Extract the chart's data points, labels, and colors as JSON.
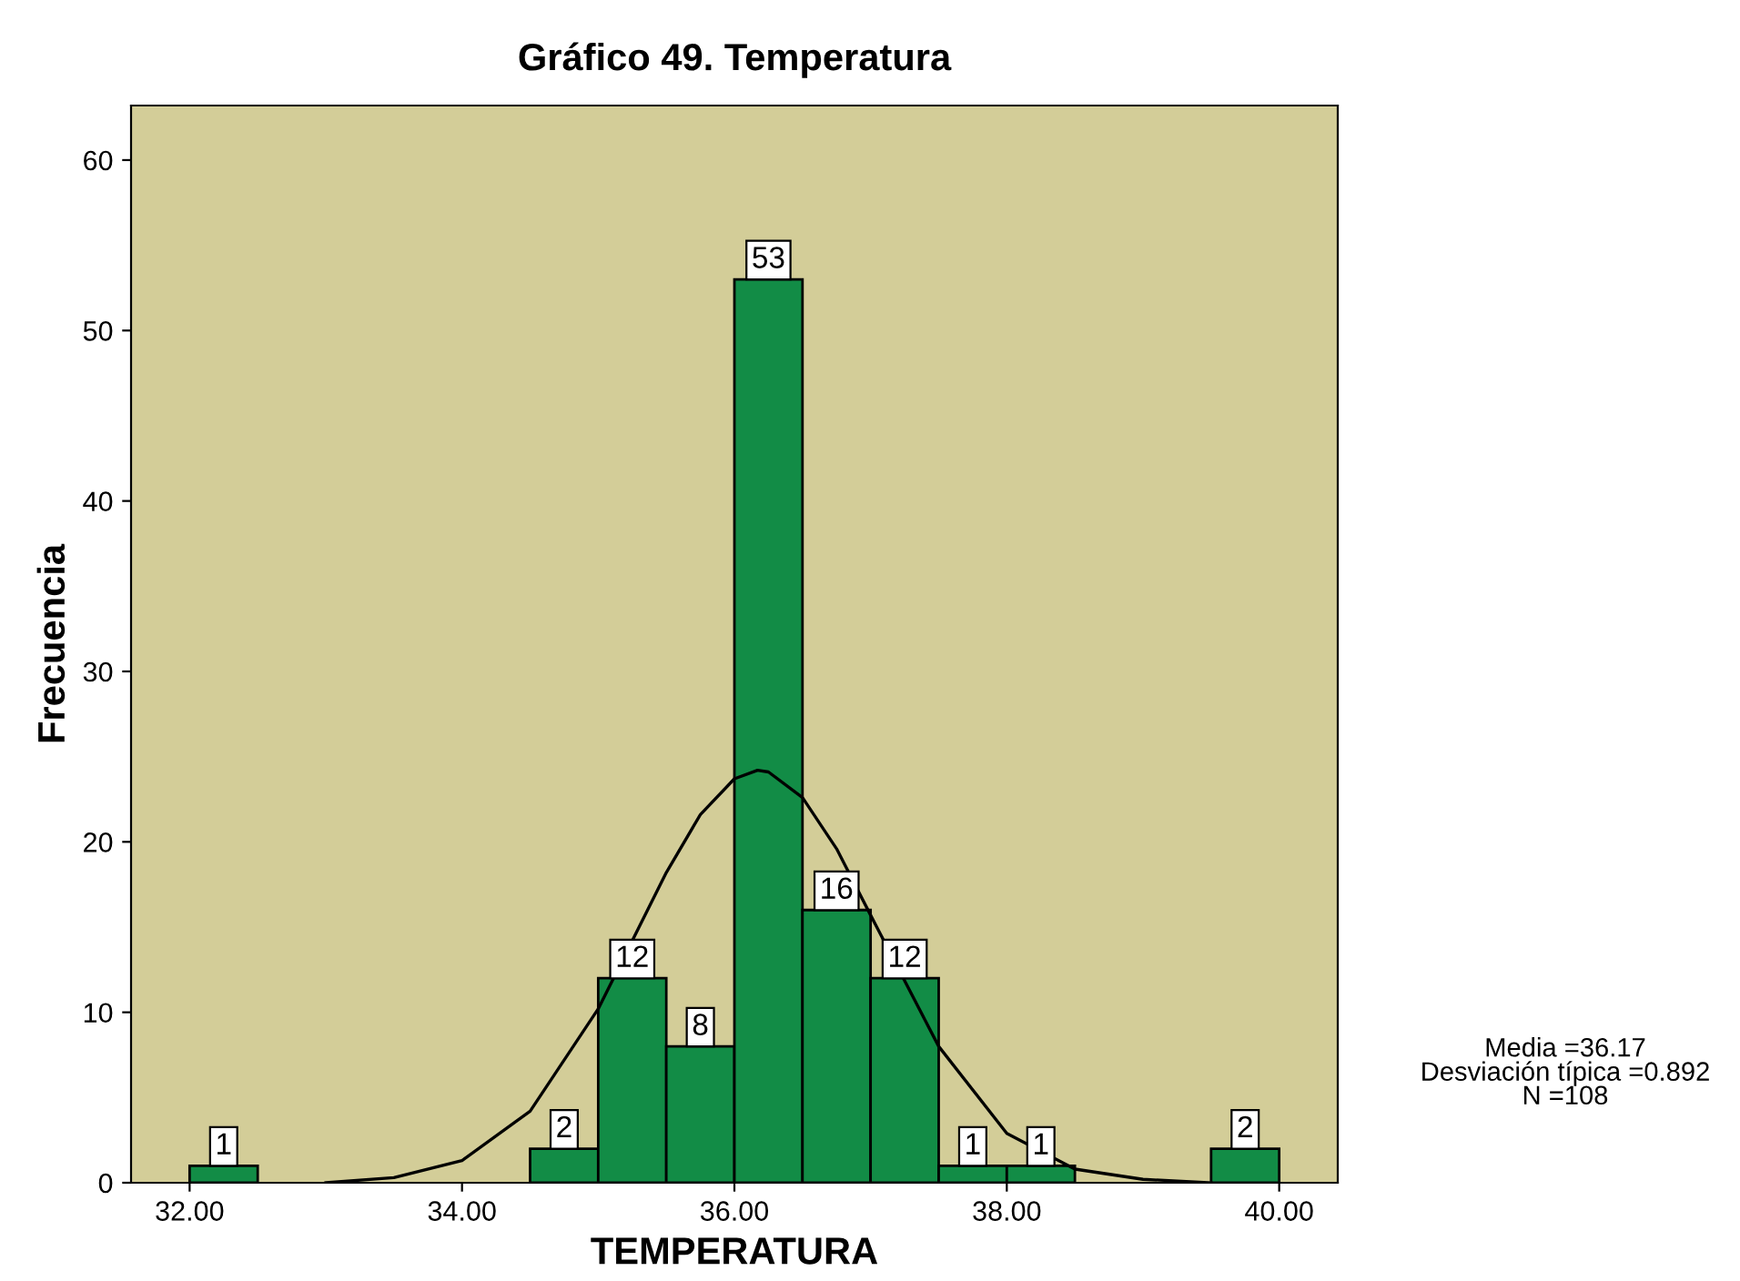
{
  "chart_data": {
    "type": "histogram",
    "title": "Gráfico 49. Temperatura",
    "xlabel": "TEMPERATURA",
    "ylabel": "Frecuencia",
    "bins": [
      32.0,
      32.5,
      33.0,
      33.5,
      34.0,
      34.5,
      35.0,
      35.5,
      36.0,
      36.5,
      37.0,
      37.5,
      38.0,
      38.5,
      39.0,
      39.5,
      40.0
    ],
    "values": [
      1,
      0,
      0,
      0,
      0,
      2,
      12,
      8,
      53,
      16,
      12,
      1,
      1,
      0,
      0,
      2
    ],
    "value_labels": [
      "1",
      null,
      null,
      null,
      null,
      "2",
      "12",
      "8",
      "53",
      "16",
      "12",
      "1",
      "1",
      null,
      null,
      "2"
    ],
    "color": "#128c46",
    "series": [
      {
        "type": "line",
        "color": "#000000",
        "x": [
          33.0,
          33.5,
          34.0,
          34.5,
          35.0,
          35.25,
          35.5,
          35.75,
          36.0,
          36.17,
          36.25,
          36.5,
          36.75,
          37.0,
          37.5,
          38.0,
          38.5,
          39.0,
          39.5
        ],
        "values": [
          0.0,
          0.3,
          1.3,
          4.2,
          10.2,
          14.2,
          18.2,
          21.6,
          23.7,
          24.2,
          24.1,
          22.6,
          19.6,
          15.7,
          8.0,
          2.9,
          0.8,
          0.2,
          0.0
        ]
      }
    ],
    "xlim": [
      31.57,
      40.43
    ],
    "ylim": [
      0,
      63.2
    ],
    "xticks": [
      {
        "value": 32,
        "label": "32.00"
      },
      {
        "value": 34,
        "label": "34.00"
      },
      {
        "value": 36,
        "label": "36.00"
      },
      {
        "value": 38,
        "label": "38.00"
      },
      {
        "value": 40,
        "label": "40.00"
      }
    ],
    "yticks": [
      0,
      10,
      20,
      30,
      40,
      50,
      60
    ],
    "grid": false,
    "annotations": [
      "Media =36.17\nDesviación típica =0.892\nN =108"
    ]
  }
}
